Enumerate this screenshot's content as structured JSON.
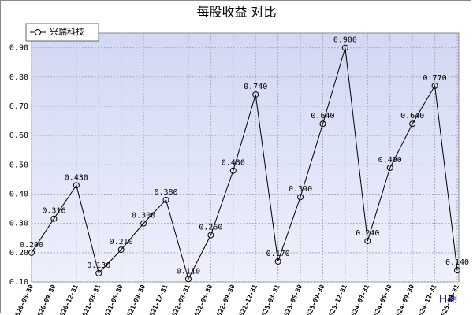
{
  "chart_data": {
    "type": "line",
    "title": "每股收益 对比",
    "x_label": "日期",
    "categories": [
      "2020-06-30",
      "2020-09-30",
      "2020-12-31",
      "2021-03-31",
      "2021-06-30",
      "2021-09-30",
      "2021-12-31",
      "2022-03-31",
      "2022-06-30",
      "2022-09-30",
      "2022-12-31",
      "2023-03-31",
      "2023-06-30",
      "2023-09-30",
      "2023-12-31",
      "2024-03-31",
      "2024-06-30",
      "2024-09-30",
      "2024-12-31",
      "2025-03-31"
    ],
    "series": [
      {
        "name": "兴瑞科技",
        "color": "#000000",
        "values": [
          0.2,
          0.316,
          0.43,
          0.13,
          0.21,
          0.3,
          0.38,
          0.11,
          0.26,
          0.48,
          0.74,
          0.17,
          0.39,
          0.64,
          0.9,
          0.24,
          0.49,
          0.64,
          0.77,
          0.14
        ],
        "value_labels": [
          "0.200",
          "0.316",
          "0.430",
          "0.130",
          "0.210",
          "0.300",
          "0.380",
          "0.110",
          "0.260",
          "0.480",
          "0.740",
          "0.170",
          "0.390",
          "0.640",
          "0.900",
          "0.240",
          "0.490",
          "0.640",
          "0.770",
          "0.140"
        ]
      }
    ],
    "ylim": [
      0.1,
      0.95
    ],
    "yticks": [
      {
        "value": 0.1,
        "label": "0.10"
      },
      {
        "value": 0.2,
        "label": "0.20"
      },
      {
        "value": 0.3,
        "label": "0.30"
      },
      {
        "value": 0.4,
        "label": "0.40"
      },
      {
        "value": 0.5,
        "label": "0.50"
      },
      {
        "value": 0.6,
        "label": "0.60"
      },
      {
        "value": 0.7,
        "label": "0.70"
      },
      {
        "value": 0.8,
        "label": "0.80"
      },
      {
        "value": 0.9,
        "label": "0.90"
      }
    ],
    "grid": true,
    "legend": "top-left"
  }
}
